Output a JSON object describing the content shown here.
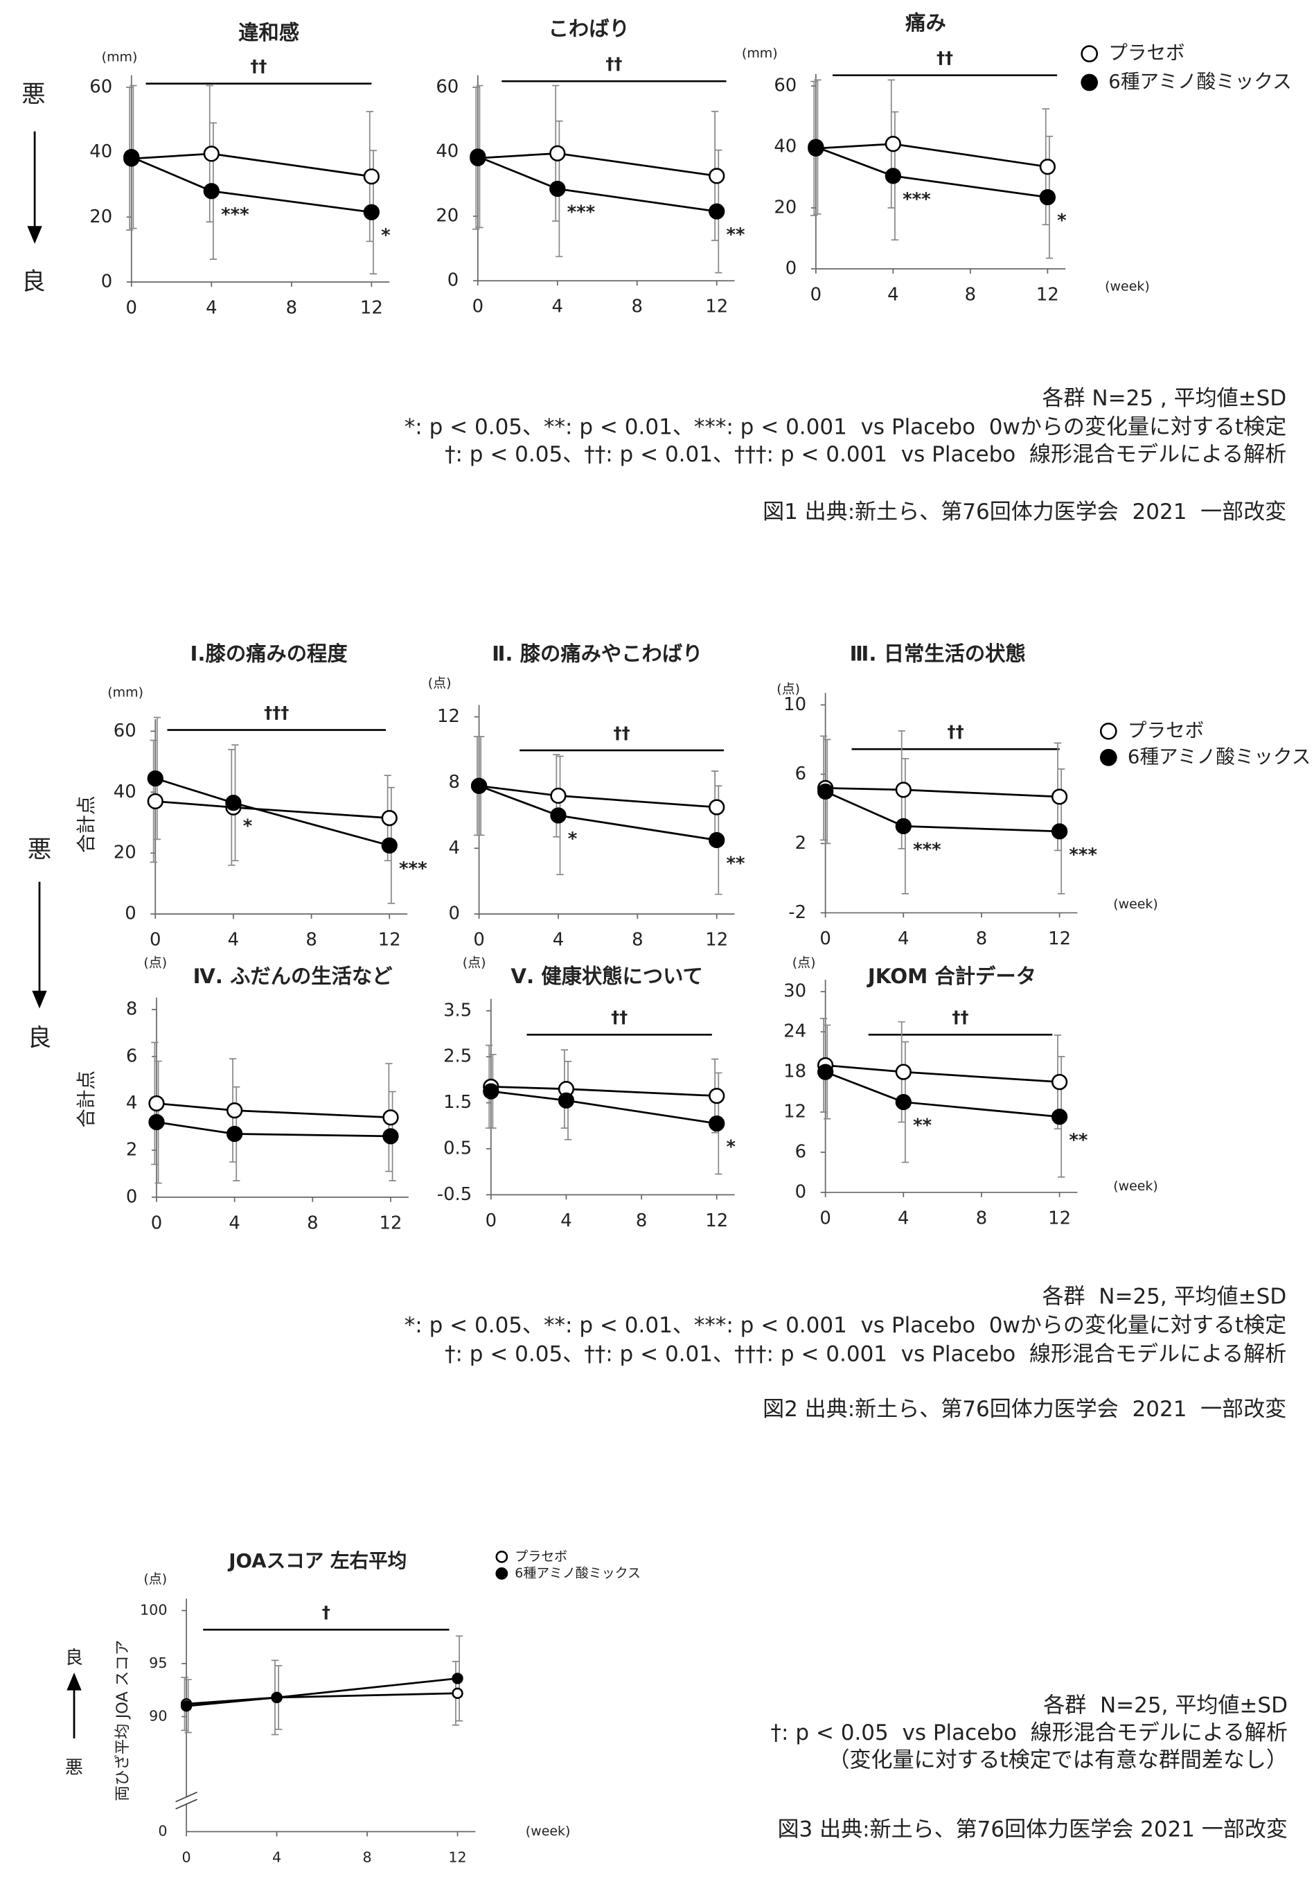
{
  "chart_data": [
    {
      "type": "line",
      "title": "違和感",
      "y_unit": "(mm)",
      "x": [
        0,
        4,
        12
      ],
      "xlim": [
        0,
        12
      ],
      "xticks": [
        0,
        4,
        8,
        12
      ],
      "ylim": [
        0,
        60
      ],
      "yticks": [
        0,
        20,
        40,
        60
      ],
      "significance": "††",
      "series": [
        {
          "color": "#000",
          "marker": "open",
          "values": [
            38,
            39.5,
            32.5
          ],
          "errors": [
            22,
            21,
            20
          ]
        },
        {
          "color": "#000",
          "marker": "filled",
          "values": [
            38.5,
            28,
            21.5
          ],
          "errors": [
            22,
            21,
            19
          ],
          "point_labels": [
            null,
            "***",
            "*"
          ]
        }
      ]
    },
    {
      "type": "line",
      "title": "こわばり",
      "x": [
        0,
        4,
        12
      ],
      "xlim": [
        0,
        12
      ],
      "xticks": [
        0,
        4,
        8,
        12
      ],
      "ylim": [
        0,
        60
      ],
      "yticks": [
        0,
        20,
        40,
        60
      ],
      "significance": "††",
      "series": [
        {
          "color": "#000",
          "marker": "open",
          "values": [
            38,
            39.5,
            32.5
          ],
          "errors": [
            22,
            21,
            20
          ]
        },
        {
          "color": "#000",
          "marker": "filled",
          "values": [
            38.5,
            28.5,
            21.5
          ],
          "errors": [
            22,
            21,
            19
          ],
          "point_labels": [
            null,
            "***",
            "**"
          ]
        }
      ]
    },
    {
      "type": "line",
      "title": "痛み",
      "y_unit": "(mm)",
      "x_unit": "(week)",
      "x": [
        0,
        4,
        12
      ],
      "xlim": [
        0,
        12
      ],
      "xticks": [
        0,
        4,
        8,
        12
      ],
      "ylim": [
        0,
        60
      ],
      "yticks": [
        0,
        20,
        40,
        60
      ],
      "significance": "††",
      "series": [
        {
          "name": "プラセボ",
          "color": "#000",
          "marker": "open",
          "values": [
            39.5,
            41,
            33.5
          ],
          "errors": [
            22,
            21,
            19
          ]
        },
        {
          "name": "6種アミノ酸ミックス",
          "color": "#000",
          "marker": "filled",
          "values": [
            40,
            30.5,
            23.5
          ],
          "errors": [
            22,
            21,
            20
          ],
          "point_labels": [
            null,
            "***",
            "*"
          ]
        }
      ]
    },
    {
      "type": "line",
      "title": "Ⅰ.膝の痛みの程度",
      "y_unit": "(mm)",
      "y_label": "合計点",
      "x": [
        0,
        4,
        12
      ],
      "xlim": [
        0,
        12
      ],
      "xticks": [
        0,
        4,
        8,
        12
      ],
      "ylim": [
        0,
        60
      ],
      "yticks": [
        0,
        20,
        40,
        60
      ],
      "significance": "†††",
      "series": [
        {
          "color": "#000",
          "marker": "open",
          "values": [
            37,
            35,
            31.5
          ],
          "errors": [
            20,
            19,
            14
          ]
        },
        {
          "color": "#000",
          "marker": "filled",
          "values": [
            44.5,
            36.5,
            22.5
          ],
          "errors": [
            20,
            19,
            19
          ],
          "point_labels": [
            null,
            "*",
            "***"
          ]
        }
      ]
    },
    {
      "type": "line",
      "title": "Ⅱ. 膝の痛みやこわばり",
      "y_unit": "(点)",
      "x": [
        0,
        4,
        12
      ],
      "xlim": [
        0,
        12
      ],
      "xticks": [
        0,
        4,
        8,
        12
      ],
      "ylim": [
        0,
        12
      ],
      "yticks": [
        0,
        4,
        8,
        12
      ],
      "significance": "††",
      "series": [
        {
          "color": "#000",
          "marker": "open",
          "values": [
            7.8,
            7.2,
            6.5
          ],
          "errors": [
            3,
            2.5,
            2.2
          ]
        },
        {
          "color": "#000",
          "marker": "filled",
          "values": [
            7.8,
            6.0,
            4.5
          ],
          "errors": [
            3,
            3.6,
            3.3
          ],
          "point_labels": [
            null,
            "*",
            "**"
          ]
        }
      ]
    },
    {
      "type": "line",
      "title": "Ⅲ. 日常生活の状態",
      "y_unit": "(点)",
      "x_unit": "(week)",
      "x": [
        0,
        4,
        12
      ],
      "xlim": [
        0,
        12
      ],
      "xticks": [
        0,
        4,
        8,
        12
      ],
      "ylim": [
        -2,
        10
      ],
      "yticks": [
        -2,
        2,
        6,
        10
      ],
      "significance": "††",
      "series": [
        {
          "name": "プラセボ",
          "color": "#000",
          "marker": "open",
          "values": [
            5.2,
            5.1,
            4.7
          ],
          "errors": [
            3,
            3.4,
            3.1
          ]
        },
        {
          "name": "6種アミノ酸ミックス",
          "color": "#000",
          "marker": "filled",
          "values": [
            5.0,
            3.0,
            2.7
          ],
          "errors": [
            3,
            3.9,
            3.6
          ],
          "point_labels": [
            null,
            "***",
            "***"
          ]
        }
      ]
    },
    {
      "type": "line",
      "title": "Ⅳ. ふだんの生活など",
      "y_unit": "(点)",
      "y_label": "合計点",
      "x": [
        0,
        4,
        12
      ],
      "xlim": [
        0,
        12
      ],
      "xticks": [
        0,
        4,
        8,
        12
      ],
      "ylim": [
        0,
        8
      ],
      "yticks": [
        0,
        2,
        4,
        6,
        8
      ],
      "series": [
        {
          "color": "#000",
          "marker": "open",
          "values": [
            4.0,
            3.7,
            3.4
          ],
          "errors": [
            2.6,
            2.2,
            2.3
          ]
        },
        {
          "color": "#000",
          "marker": "filled",
          "values": [
            3.2,
            2.7,
            2.6
          ],
          "errors": [
            2.6,
            2.0,
            1.9
          ]
        }
      ]
    },
    {
      "type": "line",
      "title": "Ⅴ. 健康状態について",
      "y_unit": "(点)",
      "x": [
        0,
        4,
        12
      ],
      "xlim": [
        0,
        12
      ],
      "xticks": [
        0,
        4,
        8,
        12
      ],
      "ylim": [
        -0.5,
        3.5
      ],
      "yticks": [
        -0.5,
        0.5,
        1.5,
        2.5,
        3.5
      ],
      "significance": "††",
      "series": [
        {
          "color": "#000",
          "marker": "open",
          "values": [
            1.85,
            1.8,
            1.65
          ],
          "errors": [
            0.9,
            0.85,
            0.8
          ]
        },
        {
          "color": "#000",
          "marker": "filled",
          "values": [
            1.75,
            1.55,
            1.05
          ],
          "errors": [
            0.8,
            0.85,
            1.1
          ],
          "point_labels": [
            null,
            null,
            "*"
          ]
        }
      ]
    },
    {
      "type": "line",
      "title": "JKOM 合計データ",
      "y_unit": "(点)",
      "x_unit": "(week)",
      "x": [
        0,
        4,
        12
      ],
      "xlim": [
        0,
        12
      ],
      "xticks": [
        0,
        4,
        8,
        12
      ],
      "ylim": [
        0,
        30
      ],
      "yticks": [
        0,
        6,
        12,
        18,
        24,
        30
      ],
      "significance": "††",
      "series": [
        {
          "color": "#000",
          "marker": "open",
          "values": [
            19,
            18,
            16.5
          ],
          "errors": [
            7,
            7.5,
            7
          ]
        },
        {
          "color": "#000",
          "marker": "filled",
          "values": [
            18,
            13.5,
            11.3
          ],
          "errors": [
            7,
            9,
            9
          ],
          "point_labels": [
            null,
            "**",
            "**"
          ]
        }
      ]
    },
    {
      "type": "line",
      "title": "JOAスコア 左右平均",
      "y_unit": "(点)",
      "x_unit": "(week)",
      "y_label": "両ひざ平均 JOA スコア",
      "x": [
        0,
        4,
        12
      ],
      "xlim": [
        0,
        12
      ],
      "xticks": [
        0,
        4,
        8,
        12
      ],
      "ylim": [
        84,
        100
      ],
      "yticks": [
        90,
        95,
        100
      ],
      "ybreak_tick": 0,
      "significance": "†",
      "series": [
        {
          "name": "プラセボ",
          "color": "#000",
          "marker": "open",
          "values": [
            91.2,
            91.8,
            92.2
          ],
          "errors": [
            2.5,
            3.5,
            3
          ]
        },
        {
          "name": "6種アミノ酸ミックス",
          "color": "#000",
          "marker": "filled",
          "values": [
            91.0,
            91.8,
            93.6
          ],
          "errors": [
            2.5,
            3,
            4
          ]
        }
      ]
    }
  ],
  "side_labels": [
    {
      "top": "悪",
      "bottom": "良"
    },
    {
      "top": "悪",
      "bottom": "良"
    },
    {
      "top": "良",
      "bottom": "悪"
    }
  ],
  "notes": [
    [
      "各群 N=25 , 平均値±SD",
      "*: p < 0.05、**: p < 0.01、***: p < 0.001  vs Placebo  0wからの変化量に対するt検定",
      "†: p < 0.05、††: p < 0.01、†††: p < 0.001  vs Placebo  線形混合モデルによる解析"
    ],
    [
      "各群  N=25, 平均値±SD",
      "*: p < 0.05、**: p < 0.01、***: p < 0.001  vs Placebo  0wからの変化量に対するt検定",
      "†: p < 0.05、††: p < 0.01、†††: p < 0.001  vs Placebo  線形混合モデルによる解析"
    ],
    [
      "各群  N=25, 平均値±SD",
      "†: p < 0.05  vs Placebo  線形混合モデルによる解析",
      "（変化量に対するt検定では有意な群間差なし）"
    ]
  ],
  "captions": [
    "図1 出典:新土ら、第76回体力医学会  2021  一部改変",
    "図2 出典:新土ら、第76回体力医学会  2021  一部改変",
    "図3 出典:新土ら、第76回体力医学会 2021 一部改変"
  ]
}
